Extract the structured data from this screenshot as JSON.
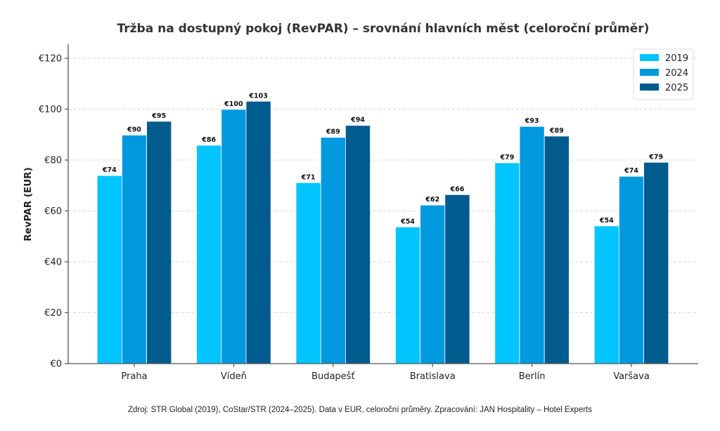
{
  "chart_data": {
    "type": "bar",
    "title": "Tržba na dostupný pokoj (RevPAR) – srovnání hlavních měst (celoroční průměr)",
    "xlabel": "",
    "ylabel": "RevPAR (EUR)",
    "ylim": [
      0,
      125
    ],
    "yticks": [
      0,
      20,
      40,
      60,
      80,
      100,
      120
    ],
    "ytick_labels": [
      "€0",
      "€20",
      "€40",
      "€60",
      "€80",
      "€100",
      "€120"
    ],
    "grid": "horizontal-dashed",
    "legend_position": "top-right",
    "categories": [
      "Praha",
      "Vídeň",
      "Budapešť",
      "Bratislava",
      "Berlín",
      "Varšava"
    ],
    "series": [
      {
        "name": "2019",
        "color": "#00c5ff",
        "values": [
          73.9,
          85.8,
          71.1,
          53.7,
          78.9,
          54.1
        ],
        "labels": [
          "€74",
          "€86",
          "€71",
          "€54",
          "€79",
          "€54"
        ]
      },
      {
        "name": "2024",
        "color": "#0099e0",
        "values": [
          89.8,
          99.9,
          88.9,
          62.3,
          93.2,
          73.6
        ],
        "labels": [
          "€90",
          "€100",
          "€89",
          "€62",
          "€93",
          "€74"
        ]
      },
      {
        "name": "2025",
        "color": "#005b8f",
        "values": [
          95.2,
          103.1,
          93.6,
          66.4,
          89.4,
          79.1
        ],
        "labels": [
          "€95",
          "€103",
          "€94",
          "€66",
          "€89",
          "€79"
        ]
      }
    ]
  },
  "footer": {
    "source": "Zdroj: STR Global (2019), CoStar/STR (2024–2025). Data v EUR, celoroční průměry. Zpracování: JAN Hospitality – Hotel Experts"
  }
}
